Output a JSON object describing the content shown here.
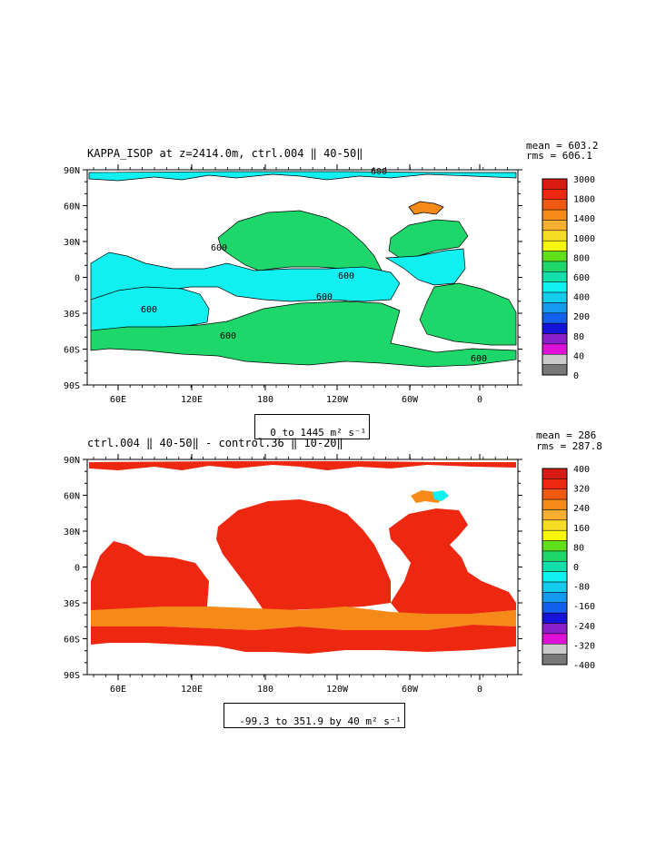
{
  "panels": [
    {
      "title": "KAPPA_ISOP at z=2414.0m, ctrl.004 ‖ 40-50‖",
      "stats": {
        "mean": "mean = 603.2",
        "rms": "rms = 606.1"
      },
      "range_label": "0 to 1445 m² s⁻¹",
      "lat_ticks": [
        "90N",
        "60N",
        "30N",
        "0",
        "30S",
        "60S",
        "90S"
      ],
      "lon_ticks": [
        "60E",
        "120E",
        "180",
        "120W",
        "60W",
        "0"
      ],
      "contour_labels": [
        "600",
        "600",
        "600",
        "600",
        "600",
        "600",
        "600"
      ],
      "colorbar": {
        "labels": [
          "3000",
          "1800",
          "1400",
          "1000",
          "800",
          "600",
          "400",
          "200",
          "80",
          "40",
          "0"
        ],
        "colors": [
          "#d71a12",
          "#ee2810",
          "#f05a10",
          "#f58a18",
          "#f9b030",
          "#f7dc25",
          "#f7f70c",
          "#5fe01a",
          "#1ed76a",
          "#12e0ac",
          "#10f0f0",
          "#14ccee",
          "#149aee",
          "#1460ee",
          "#1414d8",
          "#8a20cc",
          "#e010d8",
          "#cccccc",
          "#787878"
        ]
      }
    },
    {
      "title": "ctrl.004 ‖ 40-50‖ - control.36 ‖ 10-20‖",
      "stats": {
        "mean": "mean = 286",
        "rms": "rms = 287.8"
      },
      "range_label": "-99.3 to 351.9 by 40 m² s⁻¹",
      "lat_ticks": [
        "90N",
        "60N",
        "30N",
        "0",
        "30S",
        "60S",
        "90S"
      ],
      "lon_ticks": [
        "60E",
        "120E",
        "180",
        "120W",
        "60W",
        "0"
      ],
      "colorbar": {
        "labels": [
          "400",
          "320",
          "240",
          "160",
          "80",
          "0",
          "-80",
          "-160",
          "-240",
          "-320",
          "-400"
        ],
        "colors": [
          "#d71a12",
          "#ee2810",
          "#f05a10",
          "#f58a18",
          "#f9b030",
          "#f7dc25",
          "#f7f70c",
          "#5fe01a",
          "#1ed76a",
          "#12e0ac",
          "#10f0f0",
          "#14ccee",
          "#149aee",
          "#1460ee",
          "#1414d8",
          "#8a20cc",
          "#e010d8",
          "#cccccc",
          "#787878"
        ]
      }
    }
  ],
  "map_colors": {
    "panel1_main": "#1ed76a",
    "panel1_low": "#10f0f0",
    "panel1_high": "#f58a18",
    "panel2_main": "#ee2810",
    "panel2_mid": "#f58a18",
    "panel2_low": "#10f0f0"
  }
}
